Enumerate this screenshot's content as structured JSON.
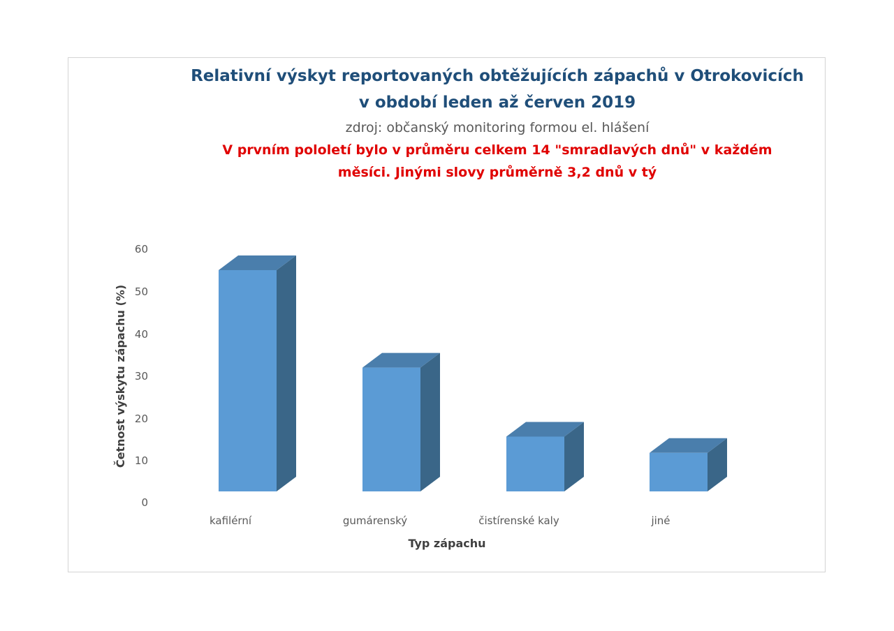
{
  "chart_data": {
    "type": "bar",
    "title_lines": [
      "Relativní  výskyt reportovaných obtěžujících zápachů v Otrokovicích",
      "v období leden až červen 2019"
    ],
    "subtitle": "zdroj: občanský monitoring formou el. hlášení",
    "note_lines": [
      "V prvním pololetí bylo v průměru celkem 14 \"smradlavých dnů\" v každém",
      "měsíci. Jinými slovy průměrně 3,2 dnů v tý"
    ],
    "categories": [
      "kafilérní",
      "gumárenský",
      "čistírenské kaly",
      "jiné"
    ],
    "values": [
      54.5,
      30.5,
      13.5,
      9.5
    ],
    "xlabel": "Typ zápachu",
    "ylabel": "Četnost výskytu zápachu (%)",
    "ylim": [
      0,
      60
    ],
    "yticks": [
      "0",
      "10",
      "20",
      "30",
      "40",
      "50",
      "60"
    ],
    "grid": false,
    "legend": "none",
    "style": "3d-column",
    "colors": {
      "bar_front": "#5b9bd5",
      "bar_side": "#3a6688",
      "bar_top": "#4a7eac",
      "title": "#1f4e79",
      "subtitle": "#595959",
      "note": "#e00000",
      "tick": "#595959",
      "frame": "#d4d4d4"
    }
  }
}
